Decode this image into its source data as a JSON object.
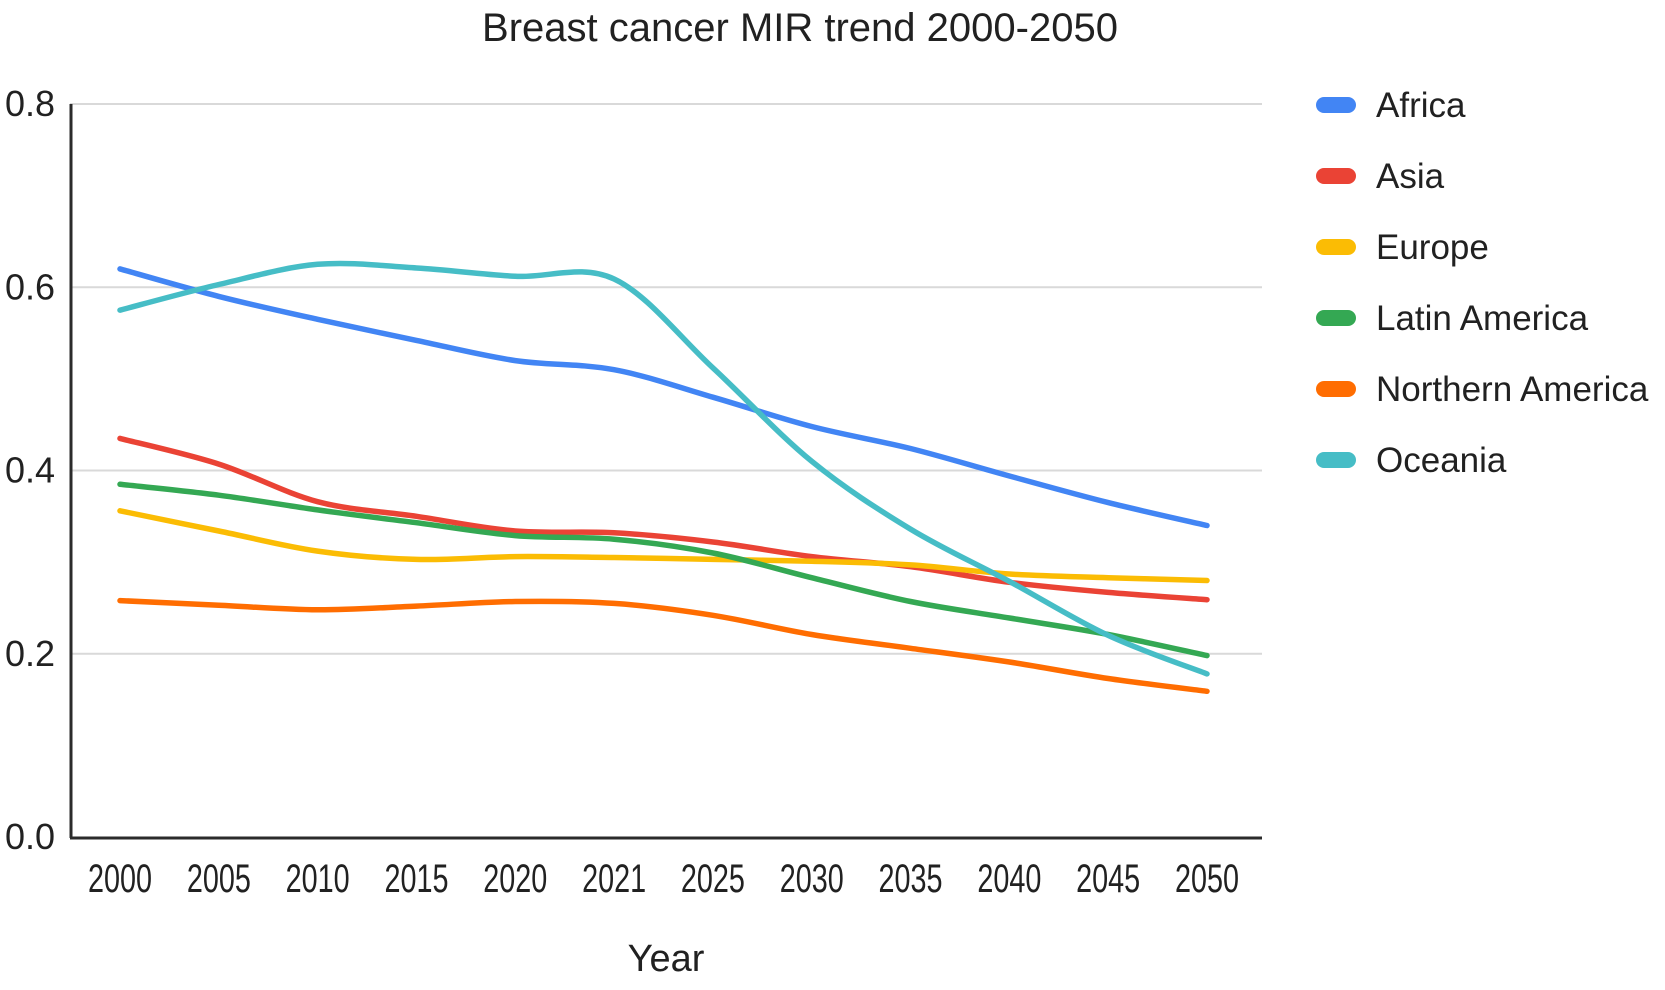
{
  "chart_data": {
    "type": "line",
    "title": "Breast cancer MIR trend 2000-2050",
    "xlabel": "Year",
    "ylabel": "",
    "categories": [
      "2000",
      "2005",
      "2010",
      "2015",
      "2020",
      "2021",
      "2025",
      "2030",
      "2035",
      "2040",
      "2045",
      "2050"
    ],
    "series": [
      {
        "name": "Africa",
        "color": "#4285F4",
        "values": [
          0.62,
          0.59,
          0.565,
          0.542,
          0.52,
          0.51,
          0.48,
          0.448,
          0.424,
          0.394,
          0.365,
          0.34
        ]
      },
      {
        "name": "Asia",
        "color": "#EA4335",
        "values": [
          0.435,
          0.407,
          0.366,
          0.35,
          0.334,
          0.332,
          0.322,
          0.306,
          0.295,
          0.278,
          0.267,
          0.259
        ]
      },
      {
        "name": "Europe",
        "color": "#FBBC04",
        "values": [
          0.356,
          0.334,
          0.312,
          0.303,
          0.306,
          0.305,
          0.303,
          0.301,
          0.297,
          0.287,
          0.283,
          0.28
        ]
      },
      {
        "name": "Latin America",
        "color": "#34A853",
        "values": [
          0.385,
          0.373,
          0.357,
          0.343,
          0.329,
          0.325,
          0.31,
          0.283,
          0.257,
          0.239,
          0.221,
          0.198
        ]
      },
      {
        "name": "Northern America",
        "color": "#FF6D01",
        "values": [
          0.258,
          0.253,
          0.248,
          0.252,
          0.257,
          0.255,
          0.242,
          0.221,
          0.206,
          0.191,
          0.173,
          0.159
        ]
      },
      {
        "name": "Oceania",
        "color": "#46BDC6",
        "values": [
          0.575,
          0.603,
          0.625,
          0.621,
          0.612,
          0.609,
          0.512,
          0.41,
          0.336,
          0.279,
          0.22,
          0.178
        ]
      }
    ],
    "ylim": [
      0,
      0.8
    ],
    "yticks": [
      "0.0",
      "0.2",
      "0.4",
      "0.6",
      "0.8"
    ],
    "grid": true,
    "legend_position": "right",
    "colors": {
      "background": "#ffffff",
      "text": "#212121",
      "gridline": "#d9d9d9",
      "axis": "#2b2b2b"
    }
  }
}
